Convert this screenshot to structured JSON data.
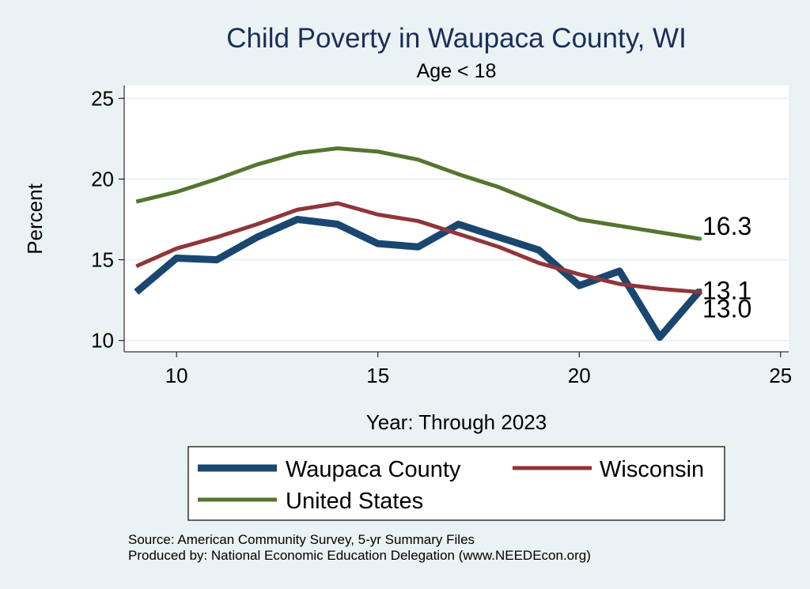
{
  "chart_data": {
    "type": "line",
    "title": "Child Poverty in Waupaca County, WI",
    "subtitle": "Age < 18",
    "xlabel": "Year: Through 2023",
    "ylabel": "Percent",
    "xlim": [
      8.7,
      25.2
    ],
    "ylim": [
      9.3,
      25.8
    ],
    "xticks": [
      "10",
      "15",
      "20",
      "25"
    ],
    "yticks": [
      "10",
      "15",
      "20",
      "25"
    ],
    "grid": true,
    "x": [
      9,
      10,
      11,
      12,
      13,
      14,
      15,
      16,
      17,
      18,
      19,
      20,
      21,
      22,
      23
    ],
    "series": [
      {
        "name": "Waupaca County",
        "color": "#1a476f",
        "values": [
          13.0,
          15.1,
          15.0,
          16.4,
          17.5,
          17.2,
          16.0,
          15.8,
          17.2,
          16.4,
          15.6,
          13.4,
          14.3,
          10.2,
          13.1
        ],
        "end_label": "13.1"
      },
      {
        "name": "Wisconsin",
        "color": "#90353b",
        "values": [
          14.6,
          15.7,
          16.4,
          17.2,
          18.1,
          18.5,
          17.8,
          17.4,
          16.6,
          15.8,
          14.8,
          14.1,
          13.5,
          13.2,
          13.0
        ],
        "end_label": "13.0"
      },
      {
        "name": "United States",
        "color": "#55752f",
        "values": [
          18.6,
          19.2,
          20.0,
          20.9,
          21.6,
          21.9,
          21.7,
          21.2,
          20.3,
          19.5,
          18.5,
          17.5,
          17.1,
          16.7,
          16.3
        ],
        "end_label": "16.3"
      }
    ],
    "legend": [
      "Waupaca County",
      "Wisconsin",
      "United States"
    ],
    "notes": [
      "Source: American Community Survey, 5-yr Summary Files",
      "Produced by: National Economic Education Delegation (www.NEEDEcon.org)"
    ]
  }
}
